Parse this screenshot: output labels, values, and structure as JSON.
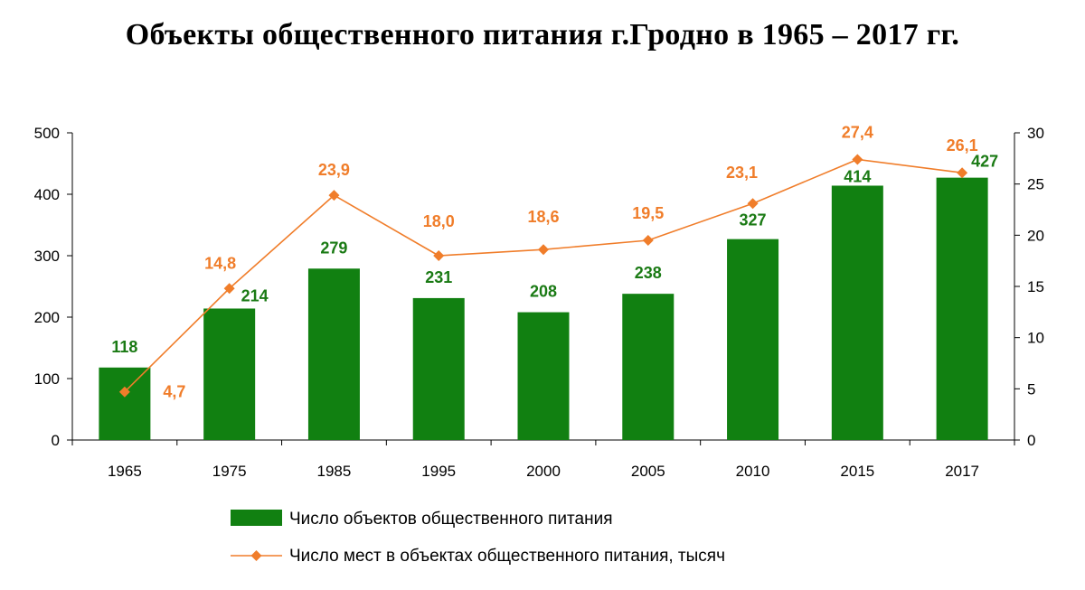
{
  "title": "Объекты общественного питания г.Гродно в 1965 – 2017 гг.",
  "chart_data": {
    "type": "bar",
    "categories": [
      "1965",
      "1975",
      "1985",
      "1995",
      "2000",
      "2005",
      "2010",
      "2015",
      "2017"
    ],
    "series": [
      {
        "name": "Число объектов общественного питания",
        "type": "bar",
        "axis": "left",
        "values": [
          118,
          214,
          279,
          231,
          208,
          238,
          327,
          414,
          427
        ],
        "labels": [
          "118",
          "214",
          "279",
          "231",
          "208",
          "238",
          "327",
          "414",
          "427"
        ],
        "color": "#118011"
      },
      {
        "name": "Число мест в объектах общественного питания, тысяч",
        "type": "line",
        "axis": "right",
        "values": [
          4.7,
          14.8,
          23.9,
          18.0,
          18.6,
          19.5,
          23.1,
          27.4,
          26.1
        ],
        "labels": [
          "4,7",
          "14,8",
          "23,9",
          "18,0",
          "18,6",
          "19,5",
          "23,1",
          "27,4",
          "26,1"
        ],
        "color": "#f07d2a"
      }
    ],
    "y_left": {
      "range": [
        0,
        500
      ],
      "ticks": [
        "0",
        "100",
        "200",
        "300",
        "400",
        "500"
      ]
    },
    "y_right": {
      "range": [
        0,
        30
      ],
      "ticks": [
        "0",
        "5",
        "10",
        "15",
        "20",
        "25",
        "30"
      ]
    },
    "grid": false,
    "legend": "bottom",
    "label_color_bar": "#1a7a14",
    "label_color_line": "#f07d2a"
  }
}
